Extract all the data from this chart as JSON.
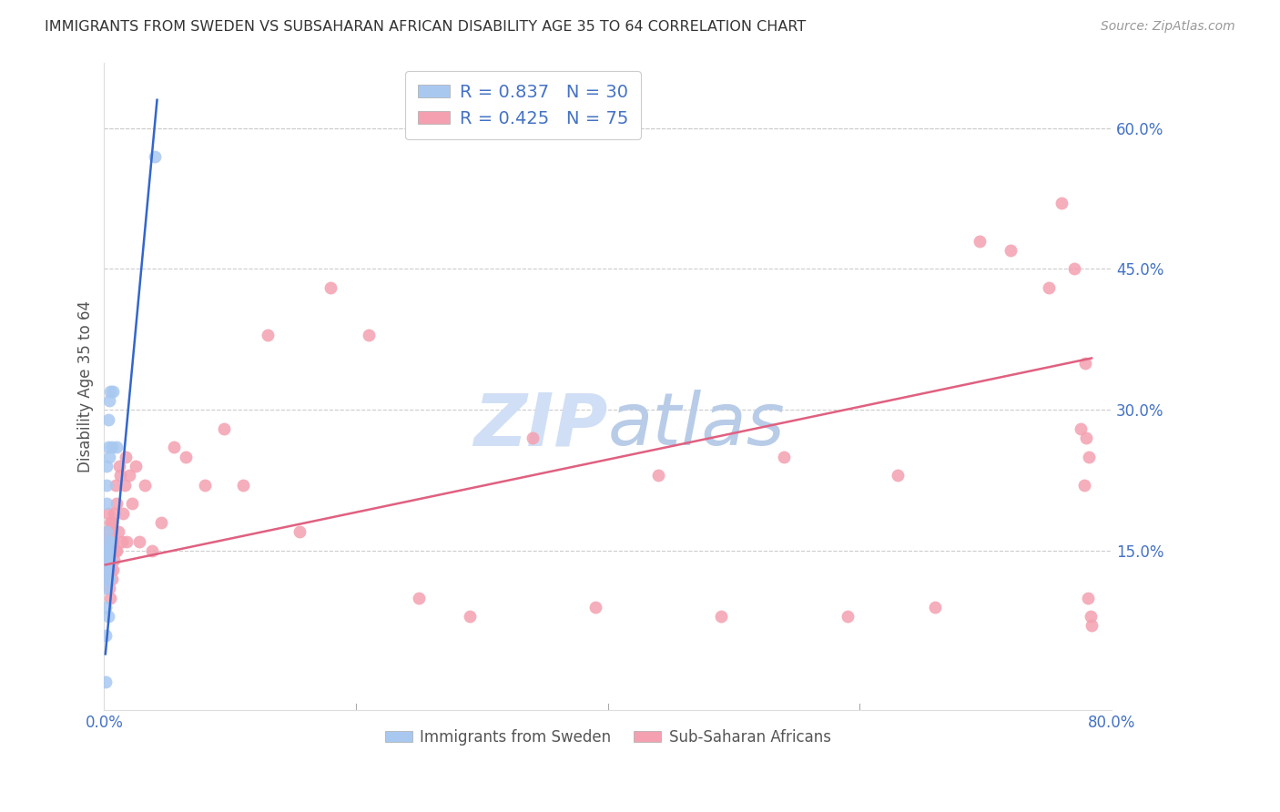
{
  "title": "IMMIGRANTS FROM SWEDEN VS SUBSAHARAN AFRICAN DISABILITY AGE 35 TO 64 CORRELATION CHART",
  "source": "Source: ZipAtlas.com",
  "ylabel": "Disability Age 35 to 64",
  "xlim": [
    0.0,
    0.8
  ],
  "ylim": [
    -0.02,
    0.67
  ],
  "yticks": [
    0.0,
    0.15,
    0.3,
    0.45,
    0.6
  ],
  "yticklabels": [
    "",
    "15.0%",
    "30.0%",
    "45.0%",
    "60.0%"
  ],
  "legend_entries": [
    {
      "label": "R = 0.837   N = 30",
      "color": "#a8c8f0"
    },
    {
      "label": "R = 0.425   N = 75",
      "color": "#f4a0b0"
    }
  ],
  "legend_labels": [
    "Immigrants from Sweden",
    "Sub-Saharan Africans"
  ],
  "sweden_color": "#a8c8f0",
  "africa_color": "#f4a0b0",
  "line_sweden_color": "#3366cc",
  "line_africa_color": "#e06080",
  "watermark_color": "#d0dff5",
  "sweden_x": [
    0.001,
    0.001,
    0.001,
    0.001,
    0.002,
    0.002,
    0.002,
    0.002,
    0.002,
    0.002,
    0.003,
    0.003,
    0.003,
    0.003,
    0.003,
    0.003,
    0.003,
    0.003,
    0.004,
    0.004,
    0.004,
    0.004,
    0.004,
    0.005,
    0.005,
    0.005,
    0.006,
    0.007,
    0.01,
    0.04
  ],
  "sweden_y": [
    0.01,
    0.06,
    0.09,
    0.11,
    0.13,
    0.15,
    0.17,
    0.2,
    0.22,
    0.24,
    0.08,
    0.12,
    0.13,
    0.14,
    0.15,
    0.16,
    0.26,
    0.29,
    0.12,
    0.14,
    0.15,
    0.25,
    0.31,
    0.14,
    0.16,
    0.32,
    0.26,
    0.32,
    0.26,
    0.57
  ],
  "africa_x": [
    0.001,
    0.001,
    0.002,
    0.002,
    0.002,
    0.003,
    0.003,
    0.003,
    0.003,
    0.004,
    0.004,
    0.004,
    0.004,
    0.005,
    0.005,
    0.005,
    0.005,
    0.006,
    0.006,
    0.006,
    0.007,
    0.007,
    0.008,
    0.008,
    0.009,
    0.009,
    0.01,
    0.01,
    0.011,
    0.012,
    0.013,
    0.014,
    0.015,
    0.016,
    0.017,
    0.018,
    0.02,
    0.022,
    0.025,
    0.028,
    0.032,
    0.038,
    0.045,
    0.055,
    0.065,
    0.08,
    0.095,
    0.11,
    0.13,
    0.155,
    0.18,
    0.21,
    0.25,
    0.29,
    0.34,
    0.39,
    0.44,
    0.49,
    0.54,
    0.59,
    0.63,
    0.66,
    0.695,
    0.72,
    0.75,
    0.76,
    0.77,
    0.775,
    0.778,
    0.779,
    0.78,
    0.781,
    0.782,
    0.783,
    0.784
  ],
  "africa_y": [
    0.14,
    0.16,
    0.13,
    0.15,
    0.17,
    0.12,
    0.14,
    0.16,
    0.19,
    0.11,
    0.13,
    0.15,
    0.17,
    0.1,
    0.13,
    0.15,
    0.18,
    0.12,
    0.15,
    0.18,
    0.13,
    0.16,
    0.14,
    0.19,
    0.15,
    0.22,
    0.15,
    0.2,
    0.17,
    0.24,
    0.23,
    0.16,
    0.19,
    0.22,
    0.25,
    0.16,
    0.23,
    0.2,
    0.24,
    0.16,
    0.22,
    0.15,
    0.18,
    0.26,
    0.25,
    0.22,
    0.28,
    0.22,
    0.38,
    0.17,
    0.43,
    0.38,
    0.1,
    0.08,
    0.27,
    0.09,
    0.23,
    0.08,
    0.25,
    0.08,
    0.23,
    0.09,
    0.48,
    0.47,
    0.43,
    0.52,
    0.45,
    0.28,
    0.22,
    0.35,
    0.27,
    0.1,
    0.25,
    0.08,
    0.07
  ],
  "africa_line_x": [
    0.001,
    0.784
  ],
  "africa_line_y": [
    0.135,
    0.355
  ],
  "sweden_line_x_start": 0.001,
  "sweden_line_x_end": 0.042,
  "sweden_line_y_start": 0.04,
  "sweden_line_y_end": 0.63
}
